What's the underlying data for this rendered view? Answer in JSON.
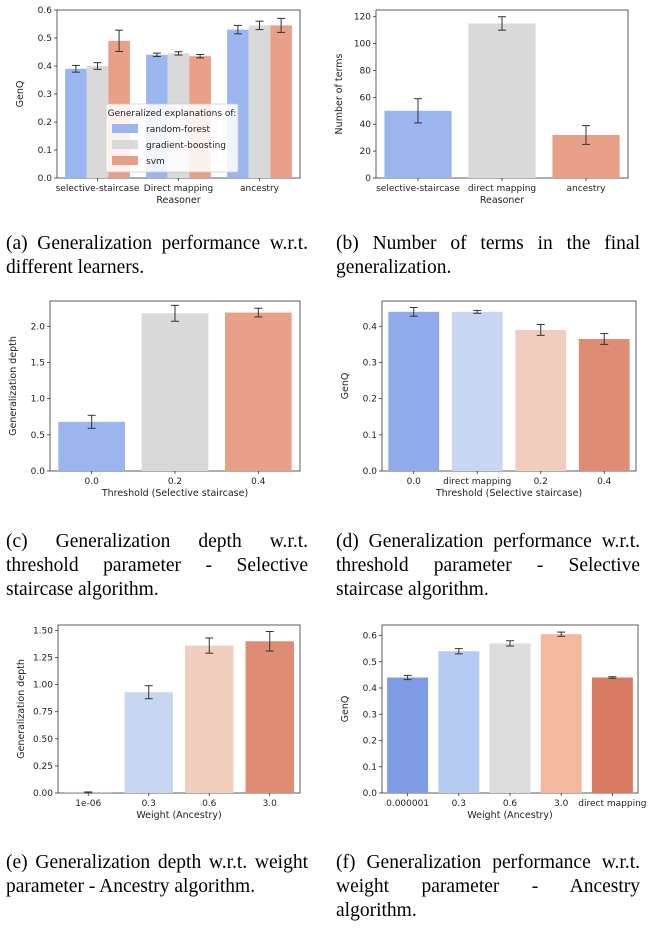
{
  "captions": [
    "(a) Generalization performance w.r.t. different learners.",
    "(b) Number of terms in the final generalization.",
    "(c) Generalization depth w.r.t. threshold parameter - Selective staircase algorithm.",
    "(d) Generalization performance w.r.t. threshold parameter - Selective staircase algorithm.",
    "(e) Generalization depth w.r.t. weight parameter - Ancestry algorithm.",
    "(f) Generalization performance w.r.t. weight parameter - Ancestry algorithm."
  ],
  "chart_data": [
    {
      "id": "a",
      "type": "bar",
      "xlabel": "Reasoner",
      "ylabel": "GenQ",
      "ylim": [
        0,
        0.6
      ],
      "yticks": [
        "0.0",
        "0.1",
        "0.2",
        "0.3",
        "0.4",
        "0.5",
        "0.6"
      ],
      "categories": [
        "selective-staircase",
        "Direct mapping",
        "ancestry"
      ],
      "legend": {
        "title": "Generalized explanations of:",
        "placement": "center"
      },
      "series": [
        {
          "name": "random-forest",
          "color": "#9bb6ee",
          "values": [
            0.39,
            0.44,
            0.53
          ],
          "errors": [
            0.012,
            0.006,
            0.015
          ]
        },
        {
          "name": "gradient-boosting",
          "color": "#d9d9d9",
          "values": [
            0.4,
            0.445,
            0.545
          ],
          "errors": [
            0.012,
            0.006,
            0.015
          ]
        },
        {
          "name": "svm",
          "color": "#e8a088",
          "values": [
            0.49,
            0.435,
            0.545
          ],
          "errors": [
            0.038,
            0.006,
            0.025
          ]
        }
      ]
    },
    {
      "id": "b",
      "type": "bar",
      "xlabel": "Reasoner",
      "ylabel": "Number of terms",
      "ylim": [
        0,
        125
      ],
      "yticks": [
        "0",
        "20",
        "40",
        "60",
        "80",
        "100",
        "120"
      ],
      "categories": [
        "selective-staircase",
        "direct mapping",
        "ancestry"
      ],
      "colors": [
        "#9bb6ee",
        "#d9d9d9",
        "#e8a088"
      ],
      "values": [
        50,
        115,
        32
      ],
      "errors": [
        9,
        5,
        7
      ]
    },
    {
      "id": "c",
      "type": "bar",
      "xlabel": "Threshold (Selective staircase)",
      "ylabel": "Generalization depth",
      "ylim": [
        0,
        2.35
      ],
      "yticks": [
        "0.0",
        "0.5",
        "1.0",
        "1.5",
        "2.0"
      ],
      "categories": [
        "0.0",
        "0.2",
        "0.4"
      ],
      "colors": [
        "#9bb6ee",
        "#d9d9d9",
        "#e8a088"
      ],
      "values": [
        0.68,
        2.18,
        2.19
      ],
      "errors": [
        0.09,
        0.11,
        0.06
      ]
    },
    {
      "id": "d",
      "type": "bar",
      "xlabel": "Threshold (Selective staircase)",
      "ylabel": "GenQ",
      "ylim": [
        0,
        0.47
      ],
      "yticks": [
        "0.0",
        "0.1",
        "0.2",
        "0.3",
        "0.4"
      ],
      "categories": [
        "0.0",
        "direct mapping",
        "0.2",
        "0.4"
      ],
      "colors": [
        "#8fabec",
        "#c7d6f1",
        "#f0cdbc",
        "#de8d74"
      ],
      "values": [
        0.44,
        0.44,
        0.39,
        0.365
      ],
      "errors": [
        0.012,
        0.004,
        0.015,
        0.015
      ]
    },
    {
      "id": "e",
      "type": "bar",
      "xlabel": "Weight (Ancestry)",
      "ylabel": "Generalization depth",
      "ylim": [
        0,
        1.55
      ],
      "yticks": [
        "0.00",
        "0.25",
        "0.50",
        "0.75",
        "1.00",
        "1.25",
        "1.50"
      ],
      "categories": [
        "1e-06",
        "0.3",
        "0.6",
        "3.0"
      ],
      "colors": [
        "#7393e0",
        "#c7d6f1",
        "#f0cdbc",
        "#de8d74"
      ],
      "values": [
        0.005,
        0.93,
        1.36,
        1.4
      ],
      "errors": [
        0.005,
        0.06,
        0.07,
        0.09
      ]
    },
    {
      "id": "f",
      "type": "bar",
      "xlabel": "Weight (Ancestry)",
      "ylabel": "GenQ",
      "ylim": [
        0,
        0.64
      ],
      "yticks": [
        "0.0",
        "0.1",
        "0.2",
        "0.3",
        "0.4",
        "0.5",
        "0.6"
      ],
      "categories": [
        "0.000001",
        "0.3",
        "0.6",
        "3.0",
        "direct mapping"
      ],
      "colors": [
        "#7f9be3",
        "#b6cbf2",
        "#dcdcdc",
        "#f2b9a0",
        "#d97b63"
      ],
      "values": [
        0.44,
        0.54,
        0.57,
        0.605,
        0.44
      ],
      "errors": [
        0.008,
        0.01,
        0.01,
        0.008,
        0.003
      ]
    }
  ]
}
